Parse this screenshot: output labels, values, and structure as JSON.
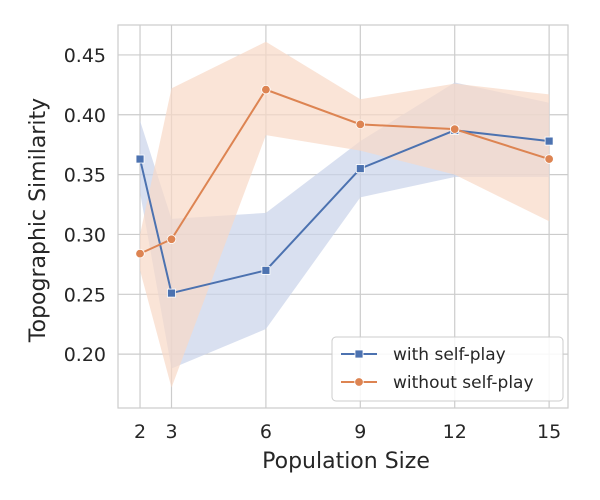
{
  "chart_data": {
    "type": "line",
    "xlabel": "Population Size",
    "ylabel": "Topographic Similarity",
    "x": [
      2,
      3,
      6,
      9,
      12,
      15
    ],
    "xlim": [
      1.3,
      15.6
    ],
    "ylim": [
      0.155,
      0.475
    ],
    "xticks": [
      2,
      3,
      6,
      9,
      12,
      15
    ],
    "xtick_labels": [
      "2",
      "3",
      "6",
      "9",
      "12",
      "15"
    ],
    "yticks": [
      0.2,
      0.25,
      0.3,
      0.35,
      0.4,
      0.45
    ],
    "ytick_labels": [
      "0.20",
      "0.25",
      "0.30",
      "0.35",
      "0.40",
      "0.45"
    ],
    "grid": true,
    "legend_position": "lower-right",
    "series": [
      {
        "name": "with self-play",
        "color": "#4c72b0",
        "band_color": "#c9d3ea",
        "marker": "square",
        "values": [
          0.363,
          0.251,
          0.27,
          0.355,
          0.387,
          0.378
        ],
        "ci_lower": [
          0.335,
          0.188,
          0.221,
          0.331,
          0.348,
          0.348
        ],
        "ci_upper": [
          0.395,
          0.313,
          0.318,
          0.378,
          0.427,
          0.41
        ]
      },
      {
        "name": "without self-play",
        "color": "#dd8452",
        "band_color": "#f8d8c6",
        "marker": "circle",
        "values": [
          0.284,
          0.296,
          0.421,
          0.392,
          0.388,
          0.363
        ],
        "ci_lower": [
          0.27,
          0.172,
          0.383,
          0.37,
          0.35,
          0.311
        ],
        "ci_upper": [
          0.3,
          0.422,
          0.461,
          0.413,
          0.426,
          0.417
        ]
      }
    ]
  }
}
